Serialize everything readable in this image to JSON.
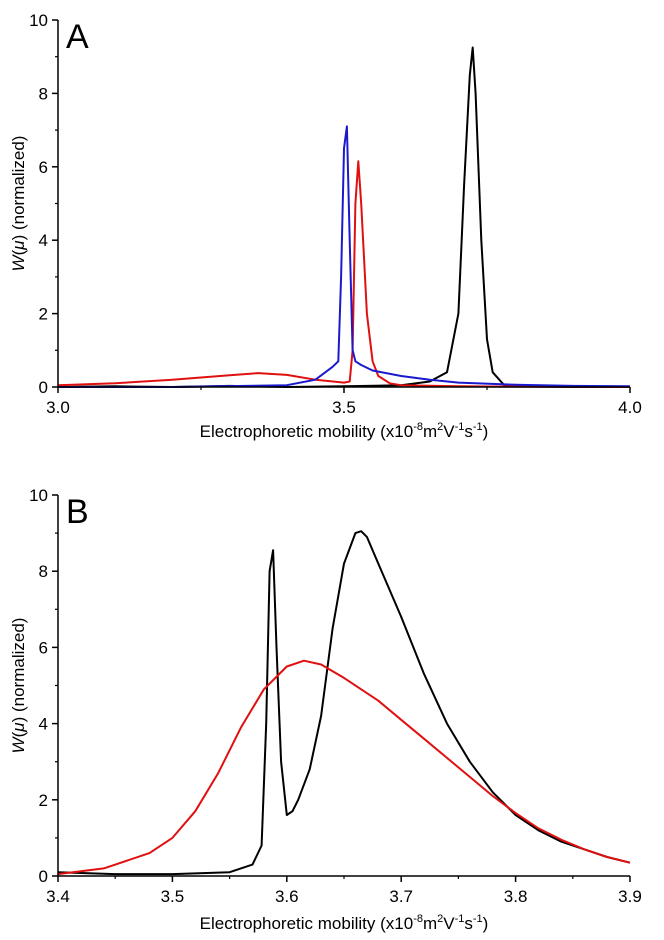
{
  "chart_data": [
    {
      "type": "line",
      "panel_label": "A",
      "xlabel": {
        "main": "Electrophoretic mobility (x10",
        "exp1": "-8",
        "unit1": "m",
        "exp2": "2",
        "unit2": "V",
        "exp3": "-1",
        "unit3": "s",
        "exp4": "-1",
        "close": ")"
      },
      "ylabel": {
        "italic": "W",
        "open": "(",
        "mu": "μ",
        "rest": ") (normalized)"
      },
      "xlim": [
        3.0,
        4.0
      ],
      "ylim": [
        0,
        10
      ],
      "xticks": [
        3.0,
        3.5,
        4.0
      ],
      "xtick_labels": [
        "3.0",
        "3.5",
        "4.0"
      ],
      "yticks": [
        0,
        2,
        4,
        6,
        8,
        10
      ],
      "ytick_labels": [
        "0",
        "2",
        "4",
        "6",
        "8",
        "10"
      ],
      "grid": false,
      "series": [
        {
          "color": "#000000",
          "x": [
            3.0,
            3.1,
            3.2,
            3.3,
            3.4,
            3.5,
            3.6,
            3.65,
            3.68,
            3.7,
            3.71,
            3.72,
            3.725,
            3.73,
            3.74,
            3.75,
            3.76,
            3.78,
            3.8,
            3.9,
            4.0
          ],
          "y": [
            0.0,
            0.02,
            0.0,
            0.03,
            0.0,
            0.02,
            0.05,
            0.15,
            0.4,
            2.0,
            5.5,
            8.5,
            9.25,
            8.0,
            4.0,
            1.3,
            0.4,
            0.05,
            0.02,
            0.0,
            0.0
          ]
        },
        {
          "color": "#e01010",
          "x": [
            3.0,
            3.1,
            3.2,
            3.3,
            3.35,
            3.4,
            3.45,
            3.5,
            3.51,
            3.515,
            3.52,
            3.525,
            3.53,
            3.54,
            3.55,
            3.56,
            3.58,
            3.6,
            3.7,
            3.8,
            4.0
          ],
          "y": [
            0.05,
            0.1,
            0.2,
            0.32,
            0.38,
            0.33,
            0.2,
            0.12,
            0.15,
            1.0,
            5.0,
            6.15,
            5.0,
            2.0,
            0.7,
            0.3,
            0.1,
            0.05,
            0.02,
            0.01,
            0.0
          ]
        },
        {
          "color": "#1a1acc",
          "x": [
            3.0,
            3.2,
            3.4,
            3.45,
            3.48,
            3.49,
            3.495,
            3.5,
            3.505,
            3.51,
            3.515,
            3.52,
            3.53,
            3.55,
            3.6,
            3.65,
            3.7,
            3.8,
            3.9,
            4.0
          ],
          "y": [
            0.0,
            0.0,
            0.05,
            0.2,
            0.55,
            0.7,
            3.0,
            6.5,
            7.1,
            4.0,
            1.0,
            0.7,
            0.6,
            0.45,
            0.3,
            0.2,
            0.12,
            0.06,
            0.03,
            0.02
          ]
        }
      ]
    },
    {
      "type": "line",
      "panel_label": "B",
      "xlabel": {
        "main": "Electrophoretic mobility (x10",
        "exp1": "-8",
        "unit1": "m",
        "exp2": "2",
        "unit2": "V",
        "exp3": "-1",
        "unit3": "s",
        "exp4": "-1",
        "close": ")"
      },
      "ylabel": {
        "italic": "W",
        "open": "(",
        "mu": "μ",
        "rest": ") (normalized)"
      },
      "xlim": [
        3.4,
        3.9
      ],
      "ylim": [
        0,
        10
      ],
      "xticks": [
        3.4,
        3.5,
        3.6,
        3.7,
        3.8,
        3.9
      ],
      "xtick_labels": [
        "3.4",
        "3.5",
        "3.6",
        "3.7",
        "3.8",
        "3.9"
      ],
      "yticks": [
        0,
        2,
        4,
        6,
        8,
        10
      ],
      "ytick_labels": [
        "0",
        "2",
        "4",
        "6",
        "8",
        "10"
      ],
      "grid": false,
      "series": [
        {
          "color": "#000000",
          "x": [
            3.4,
            3.45,
            3.5,
            3.55,
            3.57,
            3.578,
            3.582,
            3.585,
            3.588,
            3.591,
            3.595,
            3.6,
            3.605,
            3.61,
            3.62,
            3.63,
            3.64,
            3.65,
            3.66,
            3.665,
            3.67,
            3.68,
            3.7,
            3.72,
            3.74,
            3.76,
            3.78,
            3.8,
            3.82,
            3.84,
            3.86,
            3.88,
            3.9
          ],
          "y": [
            0.1,
            0.05,
            0.05,
            0.1,
            0.3,
            0.8,
            4.0,
            8.0,
            8.55,
            6.0,
            3.0,
            1.6,
            1.7,
            2.0,
            2.8,
            4.2,
            6.5,
            8.2,
            9.0,
            9.05,
            8.9,
            8.2,
            6.8,
            5.3,
            4.0,
            3.0,
            2.2,
            1.6,
            1.2,
            0.9,
            0.7,
            0.5,
            0.35
          ]
        },
        {
          "color": "#e01010",
          "x": [
            3.4,
            3.44,
            3.48,
            3.5,
            3.52,
            3.54,
            3.56,
            3.58,
            3.6,
            3.615,
            3.63,
            3.65,
            3.68,
            3.7,
            3.72,
            3.74,
            3.76,
            3.78,
            3.8,
            3.82,
            3.84,
            3.86,
            3.88,
            3.9
          ],
          "y": [
            0.05,
            0.2,
            0.6,
            1.0,
            1.7,
            2.7,
            3.9,
            4.9,
            5.5,
            5.65,
            5.55,
            5.2,
            4.6,
            4.1,
            3.6,
            3.1,
            2.6,
            2.1,
            1.65,
            1.25,
            0.95,
            0.7,
            0.5,
            0.35
          ]
        }
      ]
    }
  ]
}
